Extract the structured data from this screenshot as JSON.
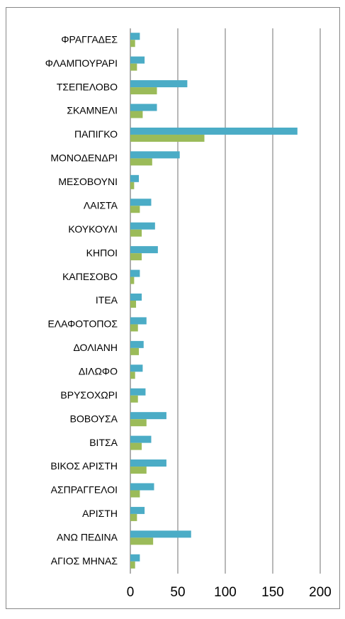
{
  "chart_data": {
    "type": "barh",
    "categories": [
      "ΦΡΑΓΓΑΔΕΣ",
      "ΦΛΑΜΠΟΥΡΑΡΙ",
      "ΤΣΕΠΕΛΟΒΟ",
      "ΣΚΑΜΝΕΛΙ",
      "ΠΑΠΙΓΚΟ",
      "ΜΟΝΟΔΕΝΔΡΙ",
      "ΜΕΣΟΒΟΥΝΙ",
      "ΛΑΙΣΤΑ",
      "ΚΟΥΚΟΥΛΙ",
      "ΚΗΠΟΙ",
      "ΚΑΠΕΣΟΒΟ",
      "ΙΤΕΑ",
      "ΕΛΑΦΟΤΟΠΟΣ",
      "ΔΟΛΙΑΝΗ",
      "ΔΙΛΩΦΟ",
      "ΒΡΥΣΟΧΩΡΙ",
      "ΒΟΒΟΥΣΑ",
      "ΒΙΤΣΑ",
      "ΒΙΚΟΣ ΑΡΙΣΤΗ",
      "ΑΣΠΡΑΓΓΕΛΟΙ",
      "ΑΡΙΣΤΗ",
      "ΑΝΩ ΠΕΔΙΝΑ",
      "ΑΓΙΟΣ ΜΗΝΑΣ"
    ],
    "series": [
      {
        "color": "#4bacc6",
        "values": [
          10,
          15,
          60,
          28,
          176,
          52,
          9,
          22,
          26,
          29,
          10,
          12,
          17,
          14,
          13,
          16,
          38,
          22,
          38,
          25,
          15,
          64,
          10
        ]
      },
      {
        "color": "#9bbb59",
        "values": [
          5,
          7,
          28,
          13,
          78,
          23,
          4,
          10,
          12,
          12,
          4,
          6,
          8,
          9,
          5,
          8,
          17,
          12,
          17,
          10,
          7,
          24,
          5
        ]
      }
    ],
    "xlim": [
      0,
      200
    ],
    "xticks": [
      0,
      50,
      100,
      150,
      200
    ],
    "grid": true
  }
}
